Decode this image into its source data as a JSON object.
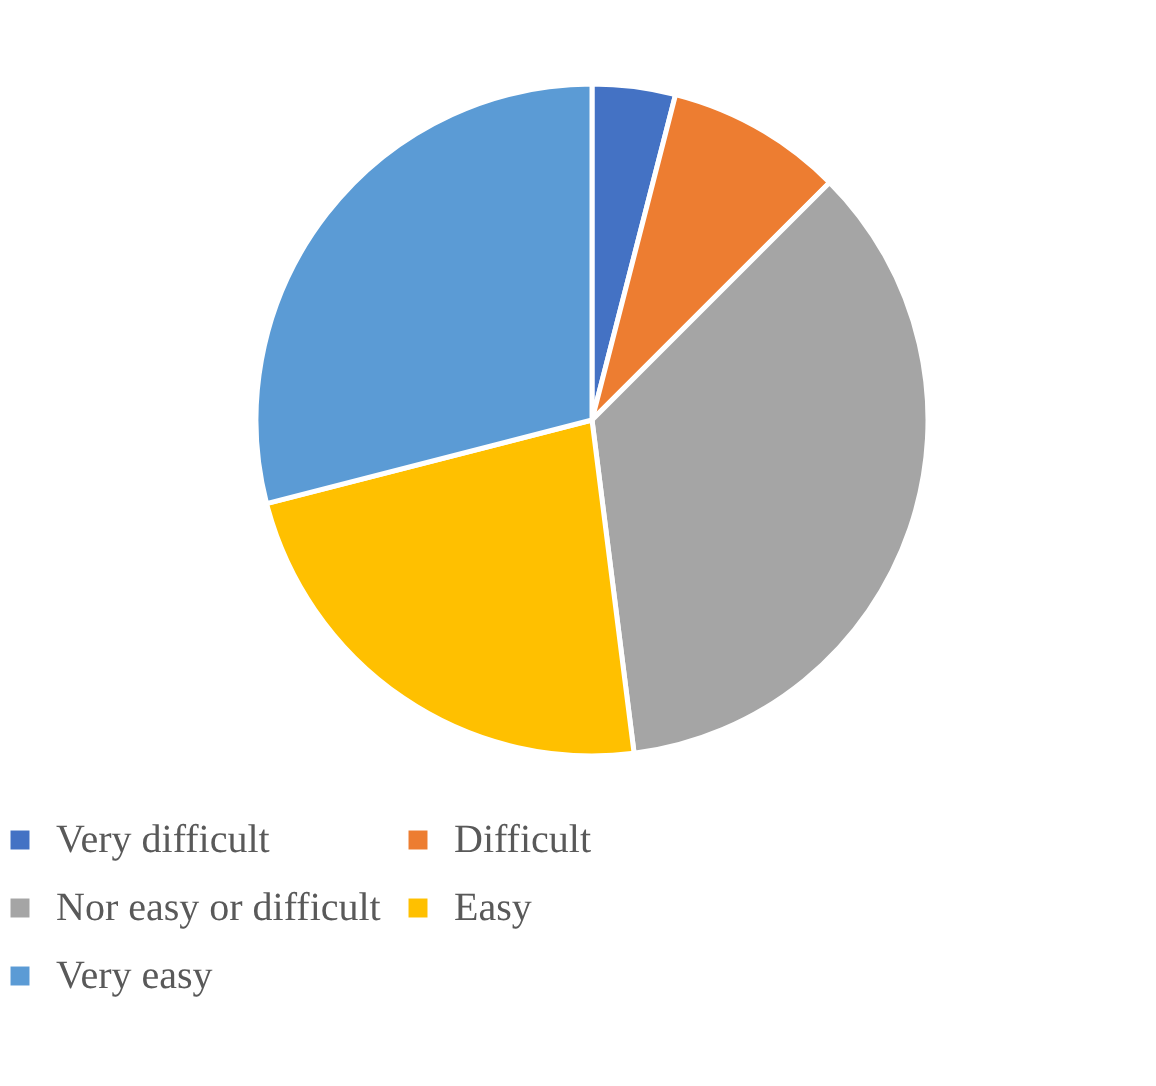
{
  "chart_data": {
    "type": "pie",
    "categories": [
      "Very difficult",
      "Difficult",
      "Nor easy or difficult",
      "Easy",
      "Very easy"
    ],
    "values": [
      4,
      8.5,
      35.5,
      23,
      29
    ],
    "colors": [
      "#4472c4",
      "#ed7d31",
      "#a5a5a5",
      "#ffc000",
      "#5b9bd5"
    ],
    "legend": "bottom"
  }
}
